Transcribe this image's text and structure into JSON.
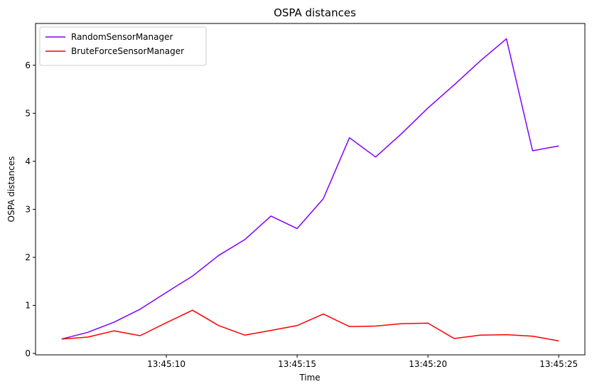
{
  "chart_data": {
    "type": "line",
    "title": "OSPA distances",
    "xlabel": "Time",
    "ylabel": "OSPA distances",
    "x": [
      "13:45:06",
      "13:45:07",
      "13:45:08",
      "13:45:09",
      "13:45:10",
      "13:45:11",
      "13:45:12",
      "13:45:13",
      "13:45:14",
      "13:45:15",
      "13:45:16",
      "13:45:17",
      "13:45:18",
      "13:45:19",
      "13:45:20",
      "13:45:21",
      "13:45:22",
      "13:45:23",
      "13:45:24",
      "13:45:25"
    ],
    "x_ticks": [
      "13:45:10",
      "13:45:15",
      "13:45:20",
      "13:45:25"
    ],
    "y_ticks": [
      0,
      1,
      2,
      3,
      4,
      5,
      6
    ],
    "xlim": [
      "13:45:05",
      "13:45:26"
    ],
    "ylim": [
      -0.03,
      6.87
    ],
    "grid": false,
    "legend_position": "upper-left",
    "series": [
      {
        "name": "RandomSensorManager",
        "color": "#7f00ff",
        "values": [
          0.3,
          0.44,
          0.65,
          0.92,
          1.27,
          1.61,
          2.04,
          2.37,
          2.86,
          2.6,
          3.22,
          4.49,
          4.09,
          4.58,
          5.11,
          5.59,
          6.09,
          6.55,
          4.22,
          4.32
        ]
      },
      {
        "name": "BruteForceSensorManager",
        "color": "#ff0000",
        "values": [
          0.3,
          0.34,
          0.47,
          0.37,
          0.64,
          0.9,
          0.58,
          0.38,
          0.48,
          0.58,
          0.82,
          0.56,
          0.57,
          0.62,
          0.63,
          0.31,
          0.38,
          0.39,
          0.36,
          0.26
        ]
      }
    ]
  }
}
